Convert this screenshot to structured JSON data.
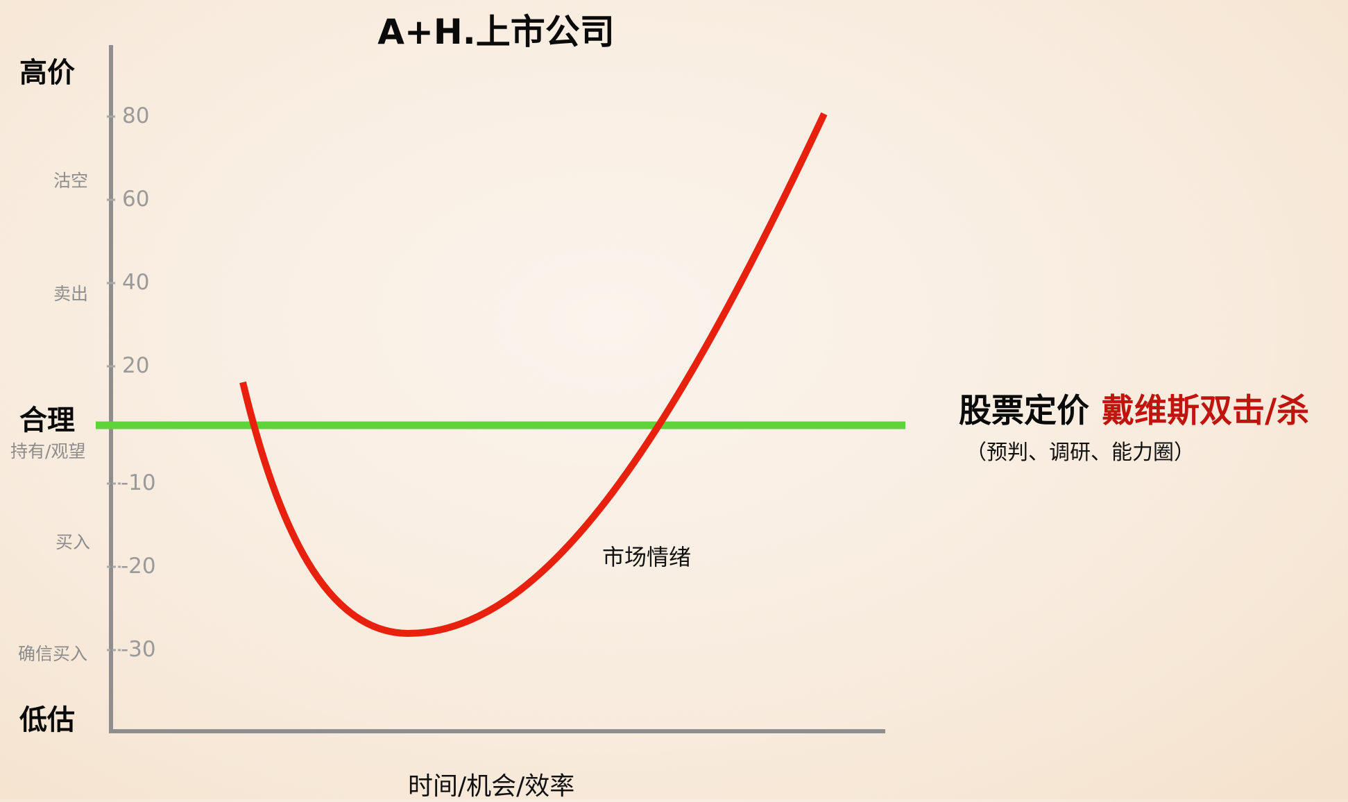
{
  "title": "A+H.上市公司",
  "levels": {
    "high": "高价",
    "fair": "合理",
    "low": "低估"
  },
  "actions": {
    "short": "沽空",
    "sell": "卖出",
    "hold": "持有/观望",
    "buy": "买入",
    "strong_buy": "确信买入"
  },
  "ticks": [
    "80",
    "60",
    "40",
    "20",
    "-10",
    "-20",
    "-30"
  ],
  "side_title": {
    "main": "股票定价",
    "highlight": "戴维斯双击/杀",
    "sub": "（预判、调研、能力圈）"
  },
  "curve_label": "市场情绪",
  "x_label": "时间/机会/效率",
  "colors": {
    "curve": "#e8210f",
    "fair_line": "#5fd43a",
    "axis": "#8e8e8e",
    "highlight": "#c0150f"
  }
}
